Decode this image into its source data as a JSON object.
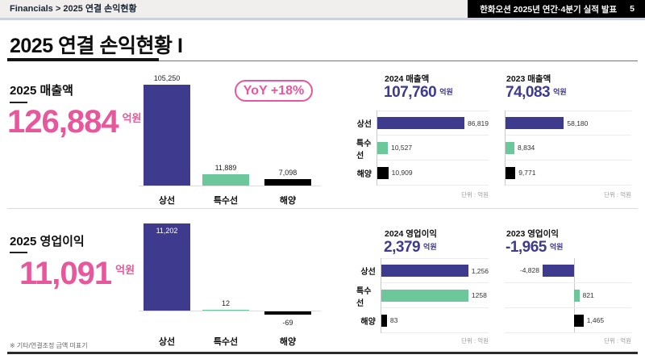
{
  "header": {
    "breadcrumb": "Financials > 2025 연결 손익현황",
    "deck_title": "한화오션 2025년 연간·4분기 실적 발표",
    "page_number": "5"
  },
  "page_title": "2025 연결 손익현황 I",
  "yoy_badge": "YoY +18%",
  "footnote": "※ 기타/연결조정 금액 미표기",
  "unit_note": "단위 : 억원",
  "colors": {
    "pink": "#e8579b",
    "indigo": "#3e3a8e",
    "green": "#6cc79b",
    "black": "#000000"
  },
  "sections": {
    "revenue": {
      "main": {
        "title": "2025 매출액",
        "value": "126,884",
        "unit": "억원"
      },
      "chart2025": {
        "categories": [
          "상선",
          "특수선",
          "해양"
        ],
        "value_labels": [
          "105,250",
          "11,889",
          "7,098"
        ]
      },
      "y2024": {
        "title": "2024 매출액",
        "value": "107,760",
        "unit": "억원",
        "row_labels": [
          "상선",
          "특수선",
          "해양"
        ],
        "value_labels": [
          "86,819",
          "10,527",
          "10,909"
        ]
      },
      "y2023": {
        "title": "2023 매출액",
        "value": "74,083",
        "unit": "억원",
        "value_labels": [
          "58,180",
          "8,834",
          "9,771"
        ]
      }
    },
    "profit": {
      "main": {
        "title": "2025 영업이익",
        "value": "11,091",
        "unit": "억원"
      },
      "chart2025": {
        "categories": [
          "상선",
          "특수선",
          "해양"
        ],
        "value_labels": [
          "11,202",
          "12",
          "-69"
        ]
      },
      "y2024": {
        "title": "2024 영업이익",
        "value": "2,379",
        "unit": "억원",
        "row_labels": [
          "상선",
          "특수선",
          "해양"
        ],
        "value_labels": [
          "1,256",
          "1258",
          "83"
        ]
      },
      "y2023": {
        "title": "2023 영업이익",
        "value": "-1,965",
        "unit": "억원",
        "value_labels": [
          "-4,828",
          "821",
          "1,465"
        ]
      }
    }
  },
  "chart_data": [
    {
      "type": "bar",
      "orientation": "vertical",
      "title": "2025 매출액",
      "categories": [
        "상선",
        "특수선",
        "해양"
      ],
      "values": [
        105250,
        11889,
        7098
      ],
      "total": 126884,
      "unit": "억원",
      "yoy_pct": 18
    },
    {
      "type": "bar",
      "orientation": "horizontal",
      "title": "2024 매출액",
      "categories": [
        "상선",
        "특수선",
        "해양"
      ],
      "values": [
        86819,
        10527,
        10909
      ],
      "total": 107760,
      "unit": "억원"
    },
    {
      "type": "bar",
      "orientation": "horizontal",
      "title": "2023 매출액",
      "categories": [
        "상선",
        "특수선",
        "해양"
      ],
      "values": [
        58180,
        8834,
        9771
      ],
      "total": 74083,
      "unit": "억원"
    },
    {
      "type": "bar",
      "orientation": "vertical",
      "title": "2025 영업이익",
      "categories": [
        "상선",
        "특수선",
        "해양"
      ],
      "values": [
        11202,
        12,
        -69
      ],
      "total": 11091,
      "unit": "억원"
    },
    {
      "type": "bar",
      "orientation": "horizontal",
      "title": "2024 영업이익",
      "categories": [
        "상선",
        "특수선",
        "해양"
      ],
      "values": [
        1256,
        1258,
        83
      ],
      "total": 2379,
      "unit": "억원"
    },
    {
      "type": "bar",
      "orientation": "horizontal",
      "title": "2023 영업이익",
      "categories": [
        "상선",
        "특수선",
        "해양"
      ],
      "values": [
        -4828,
        821,
        1465
      ],
      "total": -1965,
      "unit": "억원",
      "zero_axis": true
    }
  ]
}
